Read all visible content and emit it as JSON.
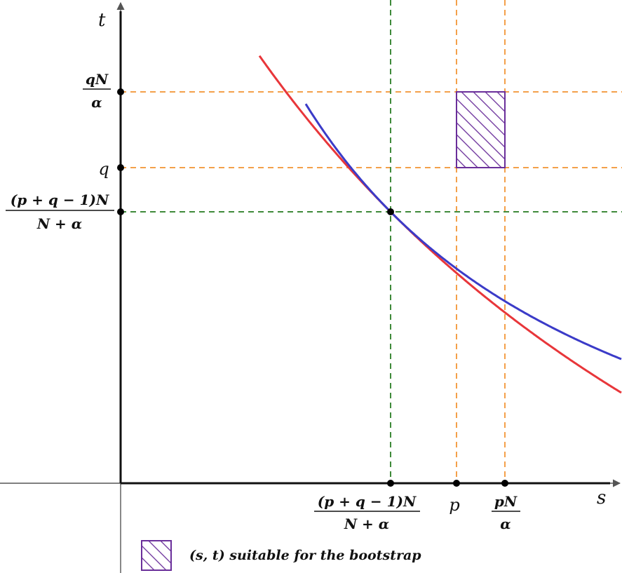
{
  "axes": {
    "x_label": "s",
    "y_label": "t"
  },
  "x_ticks": [
    {
      "id": "x-tick-intersection",
      "num": "(p + q − 1)N",
      "den": "N + α"
    },
    {
      "id": "x-tick-p",
      "text": "p"
    },
    {
      "id": "x-tick-pN-over-alpha",
      "num": "pN",
      "den": "α"
    }
  ],
  "y_ticks": [
    {
      "id": "y-tick-qN-over-alpha",
      "num": "qN",
      "den": "α"
    },
    {
      "id": "y-tick-q",
      "text": "q"
    },
    {
      "id": "y-tick-intersection",
      "num": "(p + q − 1)N",
      "den": "N + α"
    }
  ],
  "legend": {
    "label": "(s, t) suitable for the bootstrap"
  },
  "colors": {
    "red_curve": "#e8363a",
    "blue_curve": "#3b3bc8",
    "orange_guides": "#f4a04a",
    "green_guides": "#3f8a3a",
    "hatch": "#6a2f9a",
    "axes": "#111111"
  }
}
